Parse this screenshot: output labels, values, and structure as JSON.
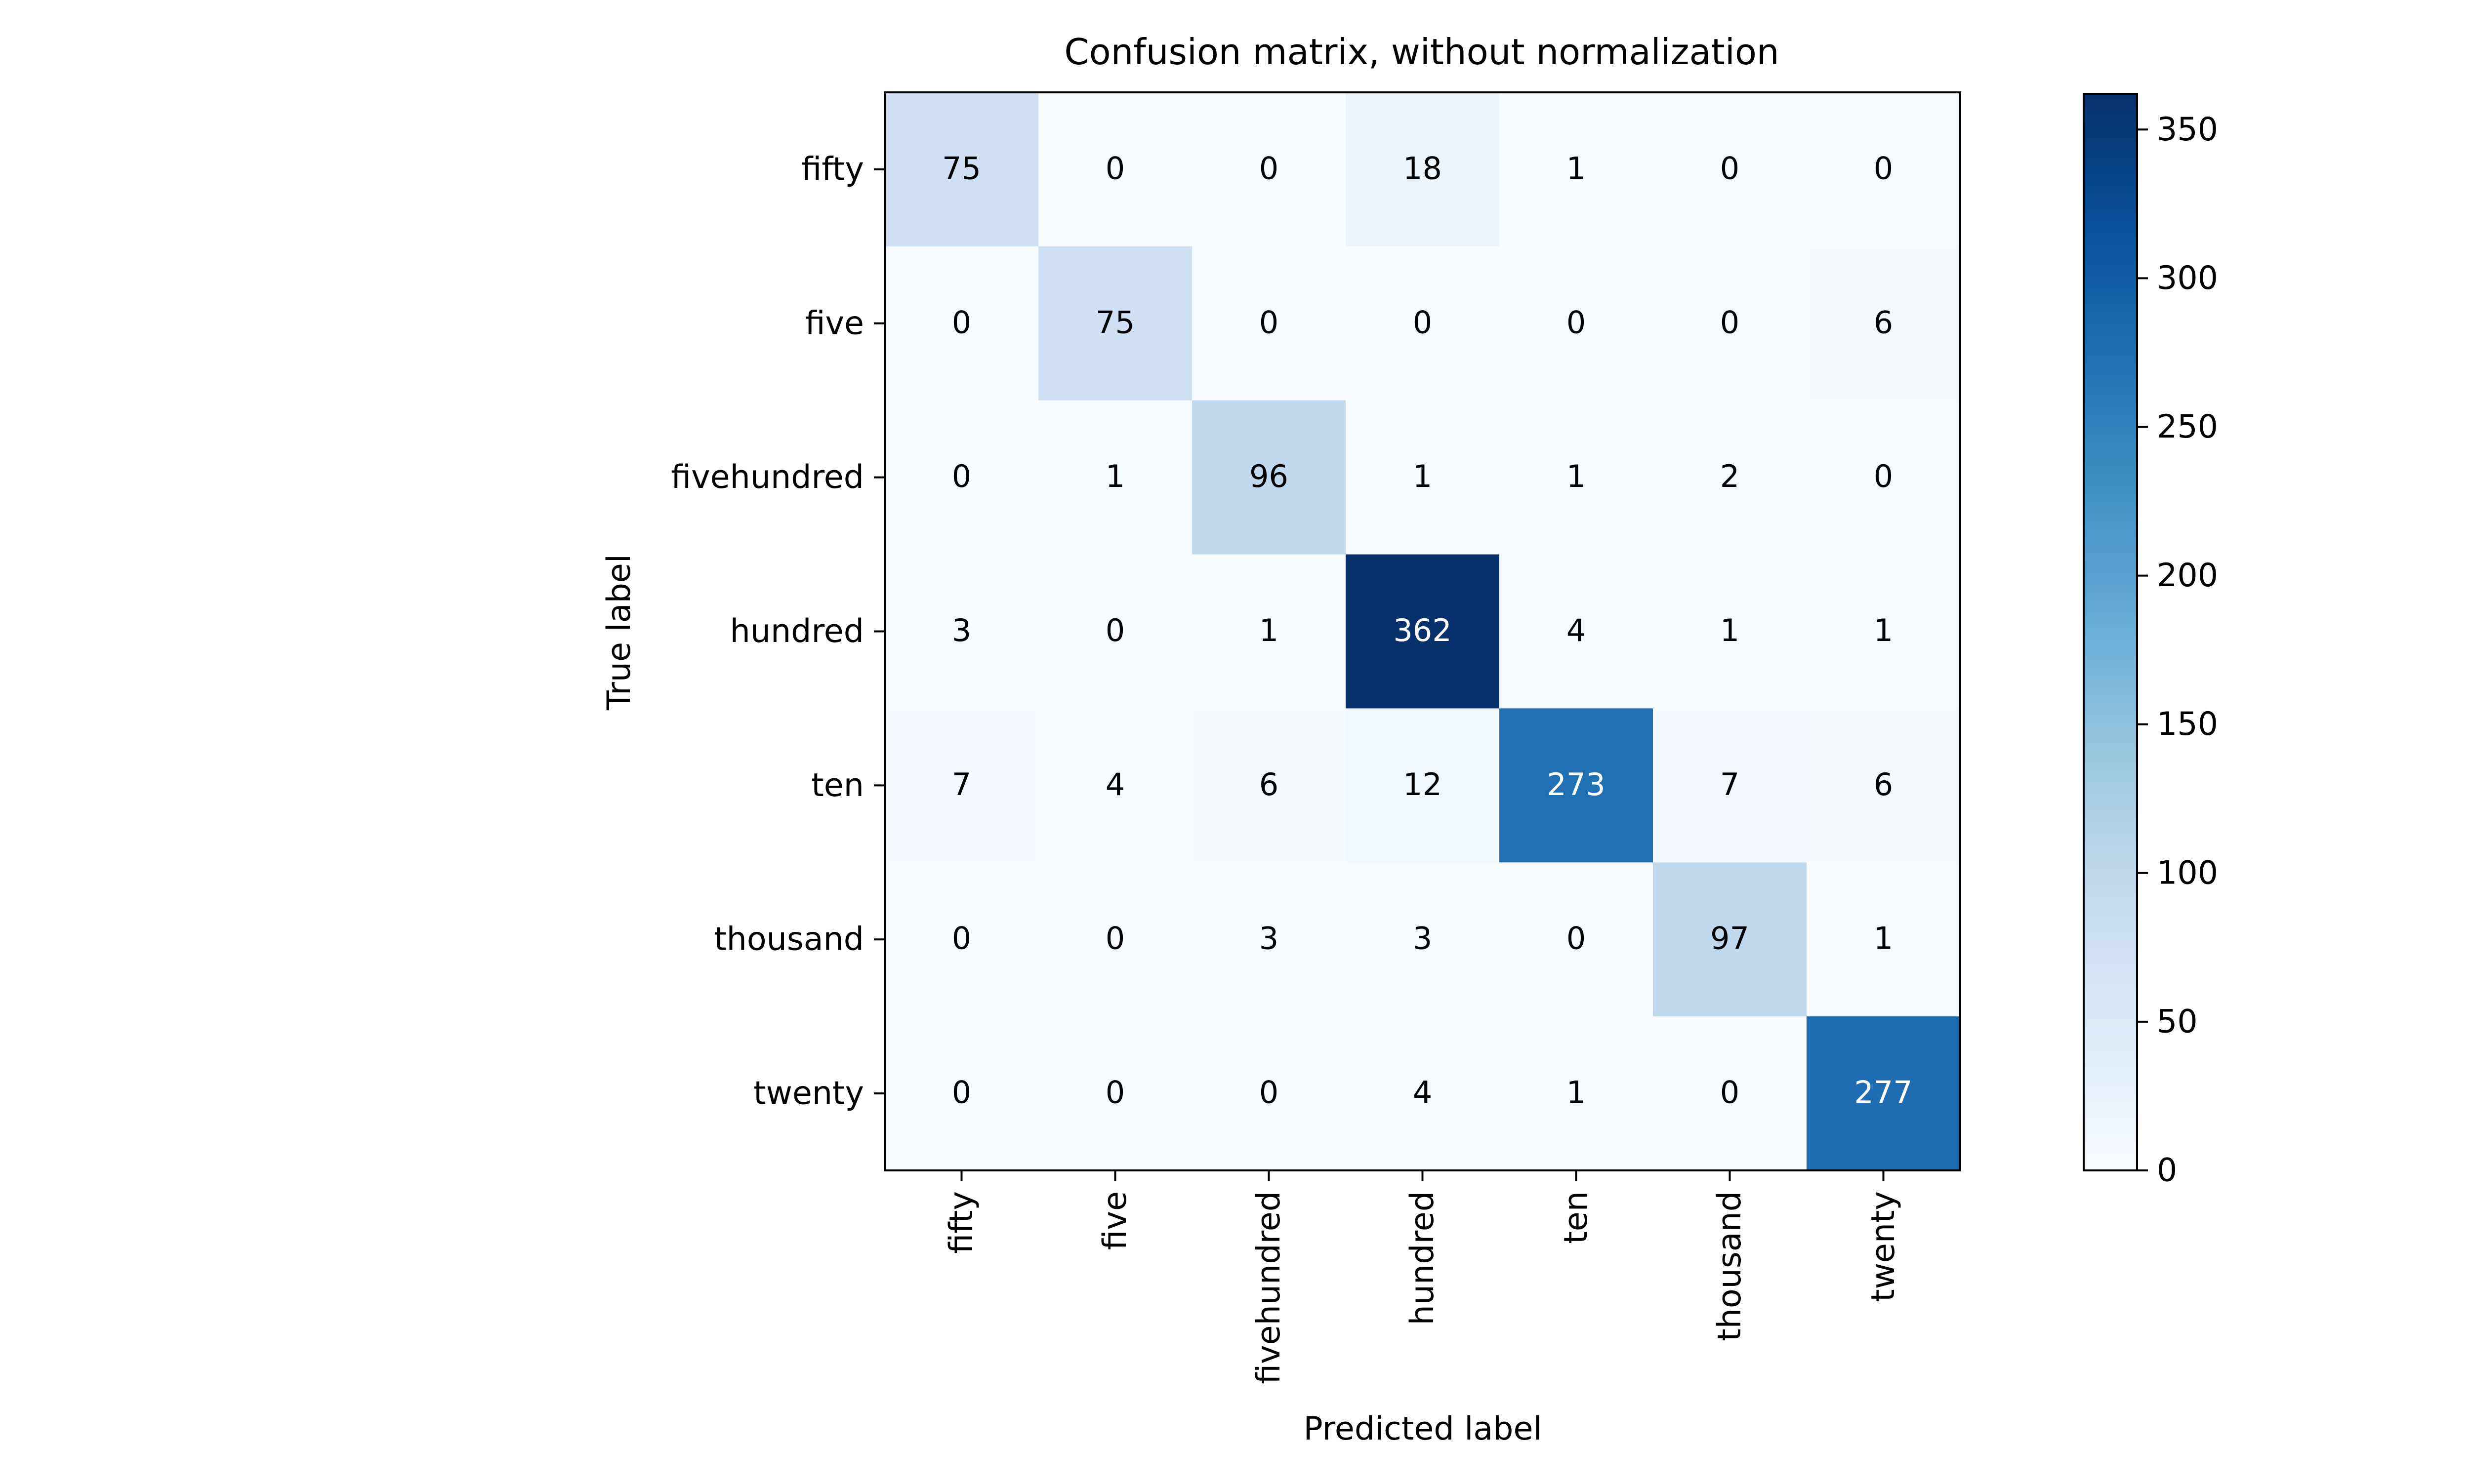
{
  "chart_data": {
    "type": "heatmap",
    "title": "Confusion matrix, without normalization",
    "xlabel": "Predicted label",
    "ylabel": "True label",
    "x_categories": [
      "fifty",
      "five",
      "fivehundred",
      "hundred",
      "ten",
      "thousand",
      "twenty"
    ],
    "y_categories": [
      "fifty",
      "five",
      "fivehundred",
      "hundred",
      "ten",
      "thousand",
      "twenty"
    ],
    "matrix": [
      [
        75,
        0,
        0,
        18,
        1,
        0,
        0
      ],
      [
        0,
        75,
        0,
        0,
        0,
        0,
        6
      ],
      [
        0,
        1,
        96,
        1,
        1,
        2,
        0
      ],
      [
        3,
        0,
        1,
        362,
        4,
        1,
        1
      ],
      [
        7,
        4,
        6,
        12,
        273,
        7,
        6
      ],
      [
        0,
        0,
        3,
        3,
        0,
        97,
        1
      ],
      [
        0,
        0,
        0,
        4,
        1,
        0,
        277
      ]
    ],
    "colormap": "Blues",
    "colormap_stops": [
      "#f7fbff",
      "#deebf7",
      "#c6dbef",
      "#9ecae1",
      "#6baed6",
      "#4292c6",
      "#2171b5",
      "#08519c",
      "#08306b"
    ],
    "vmin": 0,
    "vmax": 362,
    "colorbar_ticks": [
      0,
      50,
      100,
      150,
      200,
      250,
      300,
      350
    ],
    "legend": "colorbar-right",
    "grid": false
  }
}
